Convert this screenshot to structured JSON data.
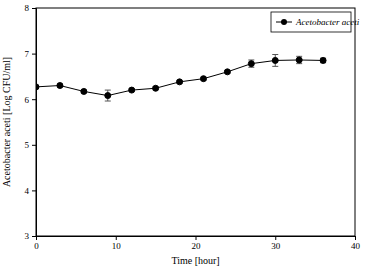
{
  "chart_data": {
    "type": "line",
    "x_label": "Time [hour]",
    "y_label": "Acetobacter aceti [Log CFU/ml]",
    "x": [
      0,
      3,
      6,
      9,
      12,
      15,
      18,
      21,
      24,
      27,
      30,
      33,
      36
    ],
    "series": [
      {
        "name": "Acetobacter aceti",
        "color": "#000000",
        "marker": "circle",
        "line_style": "solid",
        "values": [
          6.27,
          6.3,
          6.17,
          6.08,
          6.2,
          6.24,
          6.38,
          6.45,
          6.6,
          6.78,
          6.85,
          6.86,
          6.85
        ],
        "errors": [
          0.03,
          0.03,
          0.03,
          0.12,
          0.03,
          0.03,
          0.03,
          0.03,
          0.03,
          0.08,
          0.13,
          0.08,
          0.05
        ]
      }
    ],
    "xlim": [
      0,
      40
    ],
    "xticks": [
      0,
      10,
      20,
      30,
      40
    ],
    "ylim": [
      3,
      8
    ],
    "yticks": [
      3,
      4,
      5,
      6,
      7,
      8
    ],
    "grid": false,
    "legend": "upper right"
  }
}
